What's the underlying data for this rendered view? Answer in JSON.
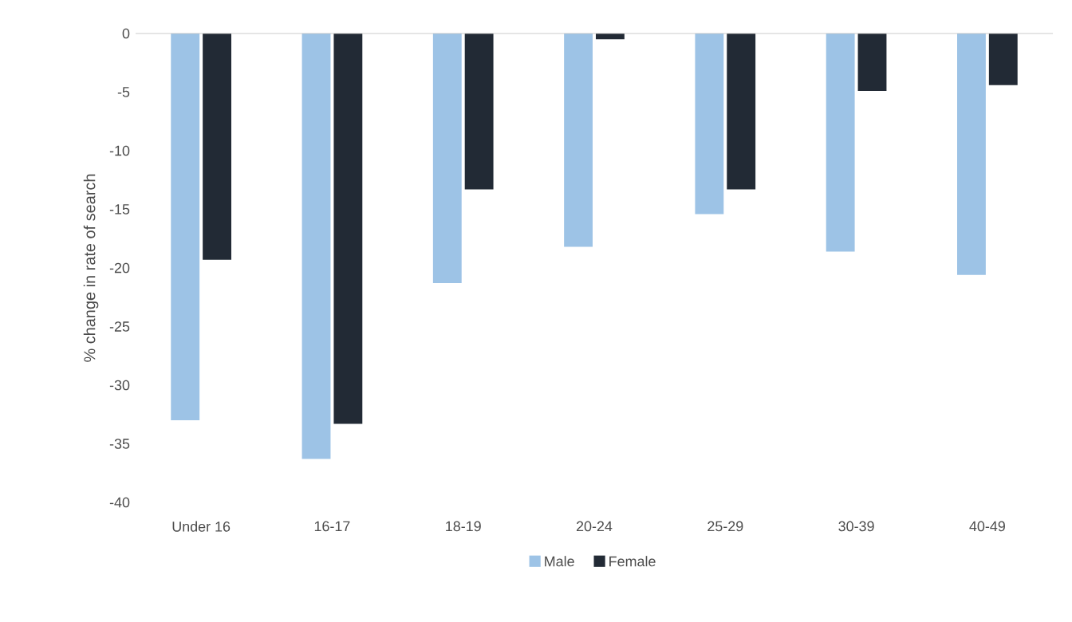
{
  "chart_data": {
    "type": "bar",
    "ylabel": "% change in rate of search",
    "categories": [
      "Under 16",
      "16-17",
      "18-19",
      "20-24",
      "25-29",
      "30-39",
      "40-49"
    ],
    "series": [
      {
        "name": "Male",
        "color": "#9dc3e6",
        "values": [
          -33,
          -36.3,
          -21.3,
          -18.2,
          -15.4,
          -18.6,
          -20.6
        ]
      },
      {
        "name": "Female",
        "color": "#222a35",
        "values": [
          -19.3,
          -33.3,
          -13.3,
          -0.5,
          -13.3,
          -4.9,
          -4.4
        ]
      }
    ],
    "ylim": [
      -40,
      0
    ],
    "yticks": [
      -40,
      -35,
      -30,
      -25,
      -20,
      -15,
      -10,
      -5,
      0
    ],
    "grid": false,
    "legend": "bottom"
  }
}
